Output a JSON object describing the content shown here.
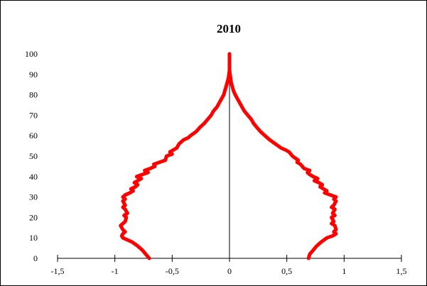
{
  "chart_data": {
    "type": "line",
    "title": "2010",
    "xlabel": "",
    "ylabel": "",
    "xlim": [
      -1.5,
      1.5
    ],
    "ylim": [
      0,
      100
    ],
    "x_ticks": [
      -1.5,
      -1,
      -0.5,
      0,
      0.5,
      1,
      1.5
    ],
    "x_tick_labels": [
      "-1,5",
      "-1",
      "-0,5",
      "0",
      "0,5",
      "1",
      "1,5"
    ],
    "y_ticks": [
      0,
      10,
      20,
      30,
      40,
      50,
      60,
      70,
      80,
      90,
      100
    ],
    "y_tick_labels": [
      "0",
      "10",
      "20",
      "30",
      "40",
      "50",
      "60",
      "70",
      "80",
      "90",
      "100"
    ],
    "grid": false,
    "legend": "none",
    "color": "#ff0000",
    "series": [
      {
        "values": [
          {
            "x": -0.7,
            "y": 0
          },
          {
            "x": -0.73,
            "y": 2
          },
          {
            "x": -0.76,
            "y": 4
          },
          {
            "x": -0.8,
            "y": 6
          },
          {
            "x": -0.85,
            "y": 8
          },
          {
            "x": -0.93,
            "y": 10
          },
          {
            "x": -0.94,
            "y": 11
          },
          {
            "x": -0.93,
            "y": 12
          },
          {
            "x": -0.91,
            "y": 13
          },
          {
            "x": -0.93,
            "y": 14
          },
          {
            "x": -0.95,
            "y": 16
          },
          {
            "x": -0.93,
            "y": 17
          },
          {
            "x": -0.91,
            "y": 18
          },
          {
            "x": -0.9,
            "y": 20
          },
          {
            "x": -0.92,
            "y": 21
          },
          {
            "x": -0.89,
            "y": 22
          },
          {
            "x": -0.91,
            "y": 24
          },
          {
            "x": -0.93,
            "y": 25
          },
          {
            "x": -0.91,
            "y": 26
          },
          {
            "x": -0.93,
            "y": 28
          },
          {
            "x": -0.91,
            "y": 29
          },
          {
            "x": -0.93,
            "y": 30
          },
          {
            "x": -0.91,
            "y": 31
          },
          {
            "x": -0.87,
            "y": 32
          },
          {
            "x": -0.84,
            "y": 33
          },
          {
            "x": -0.86,
            "y": 34
          },
          {
            "x": -0.82,
            "y": 35
          },
          {
            "x": -0.8,
            "y": 36
          },
          {
            "x": -0.83,
            "y": 37
          },
          {
            "x": -0.8,
            "y": 38
          },
          {
            "x": -0.77,
            "y": 39
          },
          {
            "x": -0.81,
            "y": 40
          },
          {
            "x": -0.76,
            "y": 41
          },
          {
            "x": -0.71,
            "y": 42
          },
          {
            "x": -0.74,
            "y": 43
          },
          {
            "x": -0.69,
            "y": 44
          },
          {
            "x": -0.65,
            "y": 45
          },
          {
            "x": -0.66,
            "y": 46
          },
          {
            "x": -0.61,
            "y": 47
          },
          {
            "x": -0.56,
            "y": 48
          },
          {
            "x": -0.55,
            "y": 50
          },
          {
            "x": -0.5,
            "y": 51
          },
          {
            "x": -0.52,
            "y": 52
          },
          {
            "x": -0.46,
            "y": 54
          },
          {
            "x": -0.44,
            "y": 56
          },
          {
            "x": -0.4,
            "y": 58
          },
          {
            "x": -0.36,
            "y": 59
          },
          {
            "x": -0.34,
            "y": 60
          },
          {
            "x": -0.29,
            "y": 62
          },
          {
            "x": -0.26,
            "y": 64
          },
          {
            "x": -0.22,
            "y": 66
          },
          {
            "x": -0.19,
            "y": 68
          },
          {
            "x": -0.16,
            "y": 70
          },
          {
            "x": -0.14,
            "y": 72
          },
          {
            "x": -0.11,
            "y": 74
          },
          {
            "x": -0.09,
            "y": 76
          },
          {
            "x": -0.07,
            "y": 78
          },
          {
            "x": -0.05,
            "y": 80
          },
          {
            "x": -0.04,
            "y": 82
          },
          {
            "x": -0.03,
            "y": 84
          },
          {
            "x": -0.02,
            "y": 86
          },
          {
            "x": -0.01,
            "y": 88
          },
          {
            "x": -0.005,
            "y": 90
          },
          {
            "x": 0,
            "y": 92
          },
          {
            "x": 0,
            "y": 100
          }
        ]
      },
      {
        "values": [
          {
            "x": 0.69,
            "y": 0
          },
          {
            "x": 0.7,
            "y": 2
          },
          {
            "x": 0.73,
            "y": 4
          },
          {
            "x": 0.76,
            "y": 6
          },
          {
            "x": 0.8,
            "y": 8
          },
          {
            "x": 0.85,
            "y": 10
          },
          {
            "x": 0.9,
            "y": 11
          },
          {
            "x": 0.93,
            "y": 12
          },
          {
            "x": 0.91,
            "y": 13
          },
          {
            "x": 0.93,
            "y": 14
          },
          {
            "x": 0.92,
            "y": 16
          },
          {
            "x": 0.89,
            "y": 17
          },
          {
            "x": 0.91,
            "y": 18
          },
          {
            "x": 0.89,
            "y": 20
          },
          {
            "x": 0.92,
            "y": 21
          },
          {
            "x": 0.9,
            "y": 22
          },
          {
            "x": 0.92,
            "y": 24
          },
          {
            "x": 0.89,
            "y": 25
          },
          {
            "x": 0.91,
            "y": 26
          },
          {
            "x": 0.93,
            "y": 28
          },
          {
            "x": 0.91,
            "y": 29
          },
          {
            "x": 0.93,
            "y": 30
          },
          {
            "x": 0.88,
            "y": 31
          },
          {
            "x": 0.83,
            "y": 32
          },
          {
            "x": 0.85,
            "y": 33
          },
          {
            "x": 0.82,
            "y": 34
          },
          {
            "x": 0.79,
            "y": 35
          },
          {
            "x": 0.81,
            "y": 36
          },
          {
            "x": 0.78,
            "y": 37
          },
          {
            "x": 0.74,
            "y": 38
          },
          {
            "x": 0.77,
            "y": 39
          },
          {
            "x": 0.73,
            "y": 40
          },
          {
            "x": 0.7,
            "y": 41
          },
          {
            "x": 0.68,
            "y": 42
          },
          {
            "x": 0.7,
            "y": 43
          },
          {
            "x": 0.65,
            "y": 44
          },
          {
            "x": 0.62,
            "y": 46
          },
          {
            "x": 0.59,
            "y": 47
          },
          {
            "x": 0.6,
            "y": 48
          },
          {
            "x": 0.55,
            "y": 50
          },
          {
            "x": 0.52,
            "y": 52
          },
          {
            "x": 0.49,
            "y": 53
          },
          {
            "x": 0.45,
            "y": 54
          },
          {
            "x": 0.4,
            "y": 56
          },
          {
            "x": 0.35,
            "y": 58
          },
          {
            "x": 0.31,
            "y": 60
          },
          {
            "x": 0.27,
            "y": 62
          },
          {
            "x": 0.24,
            "y": 64
          },
          {
            "x": 0.21,
            "y": 66
          },
          {
            "x": 0.19,
            "y": 68
          },
          {
            "x": 0.16,
            "y": 70
          },
          {
            "x": 0.13,
            "y": 72
          },
          {
            "x": 0.11,
            "y": 74
          },
          {
            "x": 0.09,
            "y": 76
          },
          {
            "x": 0.07,
            "y": 78
          },
          {
            "x": 0.05,
            "y": 80
          },
          {
            "x": 0.035,
            "y": 82
          },
          {
            "x": 0.025,
            "y": 84
          },
          {
            "x": 0.015,
            "y": 86
          },
          {
            "x": 0.01,
            "y": 88
          },
          {
            "x": 0.005,
            "y": 90
          },
          {
            "x": 0,
            "y": 92
          },
          {
            "x": 0,
            "y": 100
          }
        ]
      }
    ]
  }
}
